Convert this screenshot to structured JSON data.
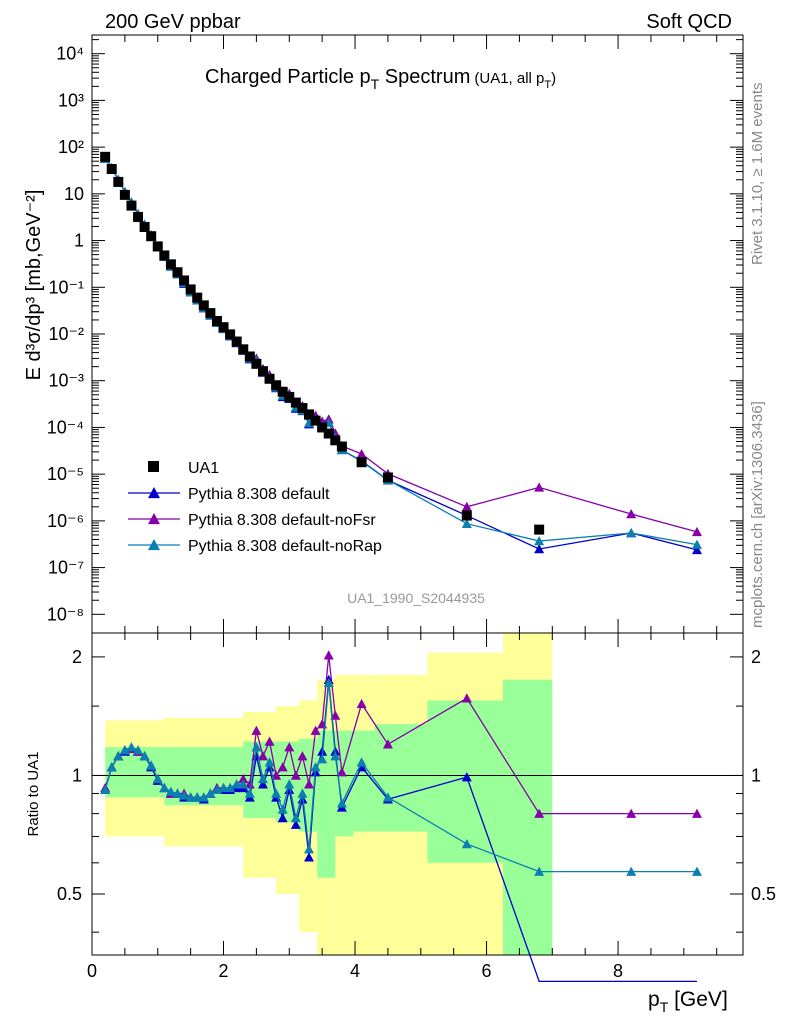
{
  "header": {
    "left": "200 GeV ppbar",
    "right": "Soft QCD"
  },
  "side": {
    "rivet": "Rivet 3.1.10, ≥ 1.6M events",
    "mcplots": "mcplots.cern.ch [arXiv:1306.3436]"
  },
  "chart_data": {
    "type": "line",
    "title": "Charged Particle p",
    "title_sub": "T",
    "title_tail": " Spectrum",
    "title_note": "(UA1, all p",
    "title_note_sub": "T",
    "title_note_end": ")",
    "analysis_id": "UA1_1990_S2044935",
    "ylabel_main": "E d³σ/dp³ [mb,GeV⁻²]",
    "ylabel_ratio": "Ratio to UA1",
    "xlabel": "p",
    "xlabel_sub": "T",
    "xlabel_unit": " [GeV]",
    "xlim": [
      0,
      9.9
    ],
    "ylim_main_log10": [
      -8.4,
      4.4
    ],
    "ylim_ratio": [
      0.35,
      2.3
    ],
    "x_ticks": [
      "0",
      "2",
      "4",
      "6",
      "8"
    ],
    "x_tick_values": [
      0,
      2,
      4,
      6,
      8
    ],
    "y_ticks_main": [
      "10⁴",
      "10³",
      "10²",
      "10",
      "1",
      "10⁻¹",
      "10⁻²",
      "10⁻³",
      "10⁻⁴",
      "10⁻⁵",
      "10⁻⁶",
      "10⁻⁷",
      "10⁻⁸"
    ],
    "y_tick_values_main": [
      4,
      3,
      2,
      1,
      0,
      -1,
      -2,
      -3,
      -4,
      -5,
      -6,
      -7,
      -8
    ],
    "y_ticks_ratio": [
      "2",
      "1",
      "0.5"
    ],
    "y_tick_values_ratio": [
      2,
      1,
      0.5
    ],
    "legend_placement": "lower-left",
    "data": {
      "name": "UA1",
      "x": [
        0.2,
        0.3,
        0.4,
        0.5,
        0.6,
        0.7,
        0.8,
        0.9,
        1.0,
        1.1,
        1.2,
        1.3,
        1.4,
        1.5,
        1.6,
        1.7,
        1.8,
        1.9,
        2.0,
        2.1,
        2.2,
        2.3,
        2.4,
        2.5,
        2.6,
        2.7,
        2.8,
        2.9,
        3.0,
        3.1,
        3.2,
        3.3,
        3.4,
        3.5,
        3.6,
        3.7,
        3.8,
        4.1,
        4.5,
        5.7,
        6.8
      ],
      "y": [
        62,
        34,
        18,
        9.5,
        5.6,
        3.2,
        1.95,
        1.24,
        0.75,
        0.48,
        0.31,
        0.21,
        0.14,
        0.09,
        0.06,
        0.041,
        0.028,
        0.019,
        0.014,
        0.0098,
        0.0069,
        0.0047,
        0.0033,
        0.0023,
        0.0016,
        0.0011,
        0.0008,
        0.00058,
        0.00045,
        0.00034,
        0.00026,
        0.00019,
        0.00014,
        0.0001,
        7.4e-05,
        5.3e-05,
        3.9e-05,
        1.8e-05,
        8.5e-06,
        1.3e-06,
        6.5e-07
      ],
      "ratio_band_inner": [
        [
          0.2,
          0.88,
          1.18
        ],
        [
          2.0,
          0.84,
          1.18
        ],
        [
          2.6,
          0.78,
          1.22
        ],
        [
          3.0,
          0.76,
          1.22
        ],
        [
          3.3,
          0.72,
          1.24
        ],
        [
          3.55,
          0.55,
          1.3
        ],
        [
          3.85,
          0.7,
          1.3
        ],
        [
          4.1,
          0.72,
          1.3
        ],
        [
          4.5,
          0.72,
          1.35
        ],
        [
          5.7,
          0.6,
          1.55
        ],
        [
          6.8,
          0.35,
          1.75
        ]
      ],
      "ratio_band_outer": [
        [
          0.2,
          0.7,
          1.38
        ],
        [
          2.0,
          0.66,
          1.4
        ],
        [
          2.6,
          0.55,
          1.45
        ],
        [
          3.0,
          0.5,
          1.5
        ],
        [
          3.3,
          0.4,
          1.55
        ],
        [
          3.55,
          0.35,
          1.75
        ],
        [
          3.85,
          0.35,
          1.8
        ],
        [
          4.1,
          0.35,
          1.8
        ],
        [
          4.5,
          0.35,
          1.8
        ],
        [
          5.7,
          0.35,
          2.05
        ],
        [
          6.8,
          0.35,
          2.3
        ]
      ]
    },
    "series": [
      {
        "name": "Pythia 8.308 default",
        "color": "#0000cc",
        "x": [
          0.2,
          0.3,
          0.4,
          0.5,
          0.6,
          0.7,
          0.8,
          0.9,
          1.0,
          1.1,
          1.2,
          1.3,
          1.4,
          1.5,
          1.6,
          1.7,
          1.8,
          1.9,
          2.0,
          2.1,
          2.2,
          2.3,
          2.4,
          2.5,
          2.6,
          2.7,
          2.8,
          2.9,
          3.0,
          3.1,
          3.2,
          3.3,
          3.4,
          3.5,
          3.6,
          3.7,
          3.8,
          4.1,
          4.5,
          5.7,
          6.8,
          8.2,
          9.2
        ],
        "ratio": [
          0.92,
          1.05,
          1.12,
          1.15,
          1.17,
          1.15,
          1.12,
          1.05,
          0.97,
          0.93,
          0.9,
          0.9,
          0.88,
          0.88,
          0.88,
          0.87,
          0.9,
          0.92,
          0.92,
          0.92,
          0.93,
          0.93,
          0.88,
          1.12,
          0.95,
          1.05,
          0.88,
          0.78,
          0.92,
          0.75,
          0.87,
          0.62,
          1.02,
          1.15,
          1.75,
          1.15,
          0.83,
          1.05,
          0.87,
          0.99,
          0.3,
          0.3,
          0.3
        ],
        "y": [
          57,
          36,
          20,
          11,
          6.5,
          3.7,
          2.2,
          1.3,
          0.73,
          0.45,
          0.28,
          0.19,
          0.12,
          0.08,
          0.053,
          0.036,
          0.025,
          0.0175,
          0.0129,
          0.009,
          0.0064,
          0.0044,
          0.0029,
          0.0026,
          0.0015,
          0.00116,
          0.0007,
          0.00045,
          0.00041,
          0.000255,
          0.000226,
          0.000118,
          0.000143,
          0.000115,
          0.000128,
          6.1e-05,
          3.3e-05,
          1.89e-05,
          7.4e-06,
          1.3e-06,
          2.5e-07,
          5.5e-07,
          2.4e-07
        ]
      },
      {
        "name": "Pythia 8.308 default-noFsr",
        "color": "#8800aa",
        "x": [
          0.2,
          0.3,
          0.4,
          0.5,
          0.6,
          0.7,
          0.8,
          0.9,
          1.0,
          1.1,
          1.2,
          1.3,
          1.4,
          1.5,
          1.6,
          1.7,
          1.8,
          1.9,
          2.0,
          2.1,
          2.2,
          2.3,
          2.4,
          2.5,
          2.6,
          2.7,
          2.8,
          2.9,
          3.0,
          3.1,
          3.2,
          3.3,
          3.4,
          3.5,
          3.6,
          3.7,
          3.8,
          4.1,
          4.5,
          5.7,
          6.8,
          8.2,
          9.2
        ],
        "ratio": [
          0.93,
          1.05,
          1.12,
          1.16,
          1.17,
          1.15,
          1.12,
          1.06,
          0.98,
          0.93,
          0.9,
          0.9,
          0.9,
          0.88,
          0.88,
          0.88,
          0.9,
          0.93,
          0.93,
          0.93,
          0.95,
          0.98,
          0.95,
          1.3,
          1.12,
          1.22,
          1.0,
          1.05,
          1.18,
          1.0,
          1.12,
          0.95,
          1.3,
          1.35,
          2.02,
          1.42,
          1.02,
          1.52,
          1.2,
          1.57,
          0.8,
          0.8,
          0.8
        ],
        "y": [
          58,
          36,
          20,
          11,
          6.6,
          3.7,
          2.2,
          1.3,
          0.74,
          0.45,
          0.28,
          0.19,
          0.126,
          0.079,
          0.053,
          0.036,
          0.025,
          0.0177,
          0.013,
          0.0091,
          0.0066,
          0.0046,
          0.0031,
          0.003,
          0.0018,
          0.00134,
          0.0008,
          0.0006,
          0.00053,
          0.00034,
          0.00029,
          0.00018,
          0.00018,
          0.000135,
          0.00015,
          7.5e-05,
          4e-05,
          2.7e-05,
          1.02e-05,
          2e-06,
          5.2e-06,
          1.4e-06,
          5.8e-07
        ]
      },
      {
        "name": "Pythia 8.308 default-noRap",
        "color": "#0a7fb0",
        "x": [
          0.2,
          0.3,
          0.4,
          0.5,
          0.6,
          0.7,
          0.8,
          0.9,
          1.0,
          1.1,
          1.2,
          1.3,
          1.4,
          1.5,
          1.6,
          1.7,
          1.8,
          1.9,
          2.0,
          2.1,
          2.2,
          2.3,
          2.4,
          2.5,
          2.6,
          2.7,
          2.8,
          2.9,
          3.0,
          3.1,
          3.2,
          3.3,
          3.4,
          3.5,
          3.6,
          3.7,
          3.8,
          4.1,
          4.5,
          5.7,
          6.8,
          8.2,
          9.2
        ],
        "ratio": [
          0.92,
          1.05,
          1.12,
          1.16,
          1.18,
          1.16,
          1.12,
          1.06,
          0.98,
          0.93,
          0.91,
          0.9,
          0.89,
          0.88,
          0.88,
          0.88,
          0.9,
          0.92,
          0.93,
          0.93,
          0.95,
          0.95,
          0.9,
          1.18,
          0.98,
          1.08,
          0.9,
          0.82,
          0.95,
          0.78,
          0.9,
          0.65,
          1.05,
          1.1,
          1.72,
          1.12,
          0.85,
          1.08,
          0.88,
          0.67,
          0.57,
          0.57,
          0.57
        ],
        "y": [
          57,
          36,
          20,
          11,
          6.6,
          3.7,
          2.2,
          1.3,
          0.74,
          0.45,
          0.28,
          0.19,
          0.125,
          0.079,
          0.053,
          0.036,
          0.025,
          0.0175,
          0.013,
          0.0091,
          0.0066,
          0.0045,
          0.003,
          0.0027,
          0.0016,
          0.0012,
          0.00072,
          0.00048,
          0.00043,
          0.00027,
          0.00023,
          0.000125,
          0.000147,
          0.00011,
          0.000127,
          5.9e-05,
          3.3e-05,
          1.94e-05,
          7.5e-06,
          8.7e-07,
          3.7e-07,
          5.5e-07,
          3.1e-07
        ]
      }
    ]
  }
}
